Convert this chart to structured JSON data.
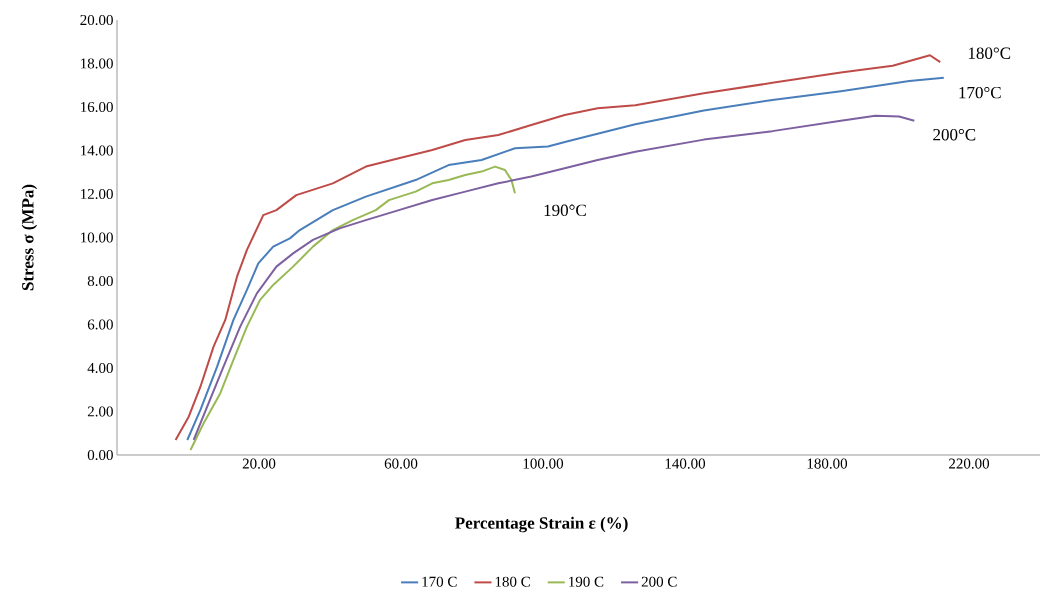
{
  "chart_data": {
    "type": "line",
    "xlabel": "Percentage Strain ε (%)",
    "ylabel": "Stress  σ (MPa)",
    "xlim": [
      -20,
      240
    ],
    "ylim": [
      0,
      20
    ],
    "xticks": [
      {
        "value": 20,
        "label": "20.00"
      },
      {
        "value": 60,
        "label": "60.00"
      },
      {
        "value": 100,
        "label": "100.00"
      },
      {
        "value": 140,
        "label": "140.00"
      },
      {
        "value": 180,
        "label": "180.00"
      },
      {
        "value": 220,
        "label": "220.00"
      }
    ],
    "yticks": [
      {
        "value": 0,
        "label": "0.00"
      },
      {
        "value": 2,
        "label": "2.00"
      },
      {
        "value": 4,
        "label": "4.00"
      },
      {
        "value": 6,
        "label": "6.00"
      },
      {
        "value": 8,
        "label": "8.00"
      },
      {
        "value": 10,
        "label": "10.00"
      },
      {
        "value": 12,
        "label": "12.00"
      },
      {
        "value": 14,
        "label": "14.00"
      },
      {
        "value": 16,
        "label": "16.00"
      },
      {
        "value": 18,
        "label": "18.00"
      },
      {
        "value": 20,
        "label": "20.00"
      }
    ],
    "grid": false,
    "legend": "bottom",
    "marker": "none",
    "line_style": "solid",
    "series": [
      {
        "name": "170 C",
        "color": "#4a7ebb",
        "x": [
          -0.2,
          3.5,
          8.2,
          12.8,
          16.6,
          19.8,
          24.0,
          28.7,
          31.5,
          40.8,
          50.1,
          64.1,
          73.4,
          82.7,
          92.1,
          101.4,
          106.7,
          126,
          145.3,
          164.6,
          183.9,
          203.2,
          212.9
        ],
        "values": [
          0.69,
          2.07,
          4.06,
          6.21,
          7.59,
          8.81,
          9.58,
          9.96,
          10.34,
          11.26,
          11.88,
          12.64,
          13.33,
          13.56,
          14.1,
          14.18,
          14.41,
          15.21,
          15.84,
          16.32,
          16.72,
          17.19,
          17.35
        ]
      },
      {
        "name": "180 C",
        "color": "#be4b48",
        "x": [
          -3.5,
          0.2,
          3.5,
          7.2,
          10.5,
          13.8,
          16.6,
          21.2,
          24.9,
          30.5,
          40.8,
          50.1,
          59.4,
          68.8,
          78.1,
          87.4,
          96.7,
          106.1,
          115.4,
          126,
          145.3,
          164.6,
          183.9,
          198.5,
          209,
          211.9
        ],
        "values": [
          0.69,
          1.76,
          3.14,
          4.98,
          6.21,
          8.2,
          9.43,
          11.03,
          11.26,
          11.95,
          12.49,
          13.26,
          13.64,
          14.02,
          14.48,
          14.71,
          15.17,
          15.63,
          15.94,
          16.08,
          16.63,
          17.11,
          17.59,
          17.9,
          18.38,
          18.06
        ]
      },
      {
        "name": "190 C",
        "color": "#98b954",
        "x": [
          0.7,
          4.4,
          9.1,
          12.8,
          16.6,
          20.3,
          24.0,
          29.6,
          35.2,
          40.8,
          46.4,
          52.9,
          56.6,
          64.1,
          68.8,
          73.4,
          78.1,
          82.7,
          86.5,
          89.3,
          91.1,
          92.1
        ],
        "values": [
          0.23,
          1.46,
          2.84,
          4.37,
          5.9,
          7.13,
          7.82,
          8.66,
          9.58,
          10.34,
          10.8,
          11.26,
          11.72,
          12.11,
          12.49,
          12.64,
          12.87,
          13.03,
          13.26,
          13.1,
          12.64,
          12.03
        ]
      },
      {
        "name": "200 C",
        "color": "#7d60a0",
        "x": [
          1.6,
          5.4,
          10.0,
          14.7,
          19.4,
          24.9,
          29.6,
          35.2,
          42.7,
          50.1,
          59.4,
          68.8,
          78.1,
          87.4,
          96.7,
          106.1,
          115.4,
          126,
          145.3,
          164.6,
          183.9,
          193.6,
          200.3,
          204.6
        ],
        "values": [
          0.69,
          2.22,
          4.06,
          5.9,
          7.43,
          8.66,
          9.27,
          9.89,
          10.42,
          10.8,
          11.26,
          11.72,
          12.11,
          12.49,
          12.8,
          13.18,
          13.56,
          13.94,
          14.5,
          14.89,
          15.37,
          15.6,
          15.56,
          15.37
        ]
      }
    ],
    "annotations": [
      "170°C",
      "180°C",
      "190°C",
      "200°C"
    ]
  }
}
